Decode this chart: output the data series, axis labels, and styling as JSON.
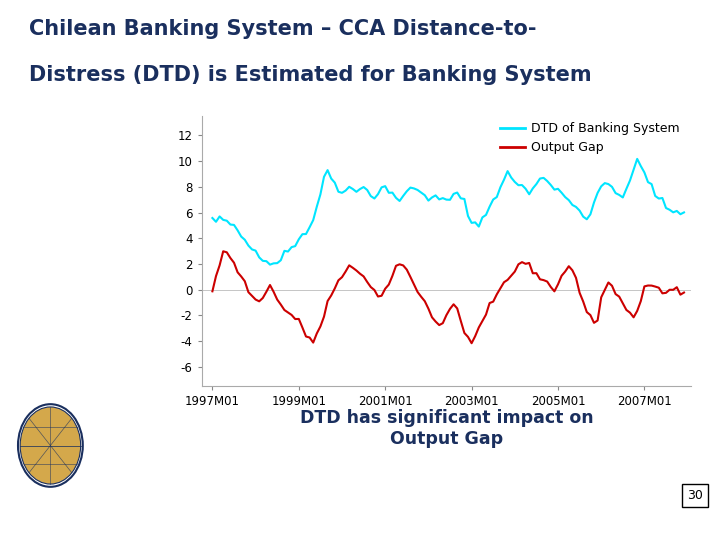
{
  "title_line1": "Chilean Banking System – CCA Distance-to-",
  "title_line2": "Distress (DTD) is Estimated for Banking System",
  "title_color": "#1a2f5e",
  "bg_color": "#ffffff",
  "legend_dtd": "DTD of Banking System",
  "legend_gap": "Output Gap",
  "dtd_color": "#00e5ff",
  "gap_color": "#cc0000",
  "annotation": "DTD has significant impact on\nOutput Gap",
  "annotation_color": "#1a2f5e",
  "page_num": "30",
  "yticks": [
    -6,
    -4,
    -2,
    0,
    2,
    4,
    6,
    8,
    10,
    12
  ],
  "xtick_labels": [
    "1997M01",
    "1999M01",
    "2001M01",
    "2003M01",
    "2005M01",
    "2007M01"
  ],
  "ylim": [
    -7.5,
    13.5
  ],
  "footer_color": "#1a2f5e",
  "divider_color": "#aaaaaa"
}
